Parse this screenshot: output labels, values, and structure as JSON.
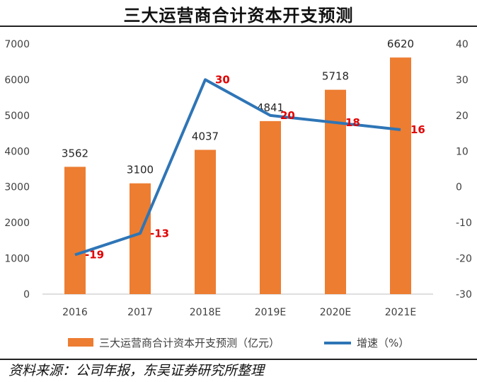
{
  "title": "三大运营商合计资本开支预测",
  "source": "资料来源：公司年报，东吴证券研究所整理",
  "chart_data": {
    "type": "bar+line",
    "categories": [
      "2016",
      "2017",
      "2018E",
      "2019E",
      "2020E",
      "2021E"
    ],
    "series": [
      {
        "name": "三大运营商合计资本开支预测（亿元）",
        "type": "bar",
        "axis": "left",
        "color": "#ED7D31",
        "values": [
          3562,
          3100,
          4037,
          4841,
          5718,
          6620
        ],
        "labels": [
          "3562",
          "3100",
          "4037",
          "4841",
          "5718",
          "6620"
        ]
      },
      {
        "name": "增速（%）",
        "type": "line",
        "axis": "right",
        "color": "#2E75B6",
        "values": [
          -19,
          -13,
          30,
          20,
          18,
          16
        ],
        "labels": [
          "-19",
          "-13",
          "30",
          "20",
          "18",
          "16"
        ],
        "label_color": "#E00000"
      }
    ],
    "y_left": {
      "min": 0,
      "max": 7000,
      "step": 1000,
      "ticks": [
        "0",
        "1000",
        "2000",
        "3000",
        "4000",
        "5000",
        "6000",
        "7000"
      ]
    },
    "y_right": {
      "min": -30,
      "max": 40,
      "step": 10,
      "ticks": [
        "-30",
        "-20",
        "-10",
        "0",
        "10",
        "20",
        "30",
        "40"
      ]
    },
    "grid": false,
    "legend": "bottom"
  }
}
